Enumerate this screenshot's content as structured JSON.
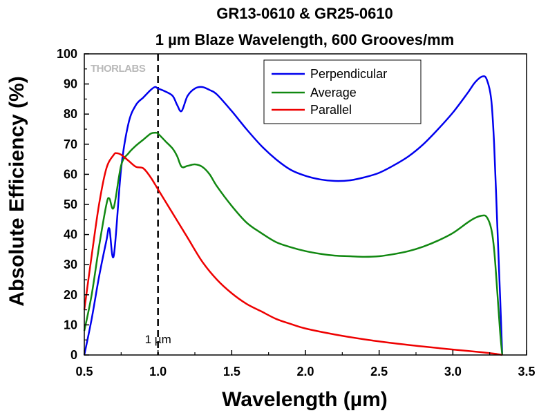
{
  "chart_data": {
    "type": "line",
    "title_line1": "GR13-0610 & GR25-0610",
    "title_line2": "1 µm Blaze Wavelength, 600 Grooves/mm",
    "xlabel": "Wavelength (µm)",
    "ylabel": "Absolute Efficiency (%)",
    "xlim": [
      0.5,
      3.5
    ],
    "ylim": [
      0,
      100
    ],
    "xticks": [
      0.5,
      1.0,
      1.5,
      2.0,
      2.5,
      3.0,
      3.5
    ],
    "xtick_labels": [
      "0.5",
      "1.0",
      "1.5",
      "2.0",
      "2.5",
      "3.0",
      "3.5"
    ],
    "yticks": [
      0,
      10,
      20,
      30,
      40,
      50,
      60,
      70,
      80,
      90,
      100
    ],
    "ytick_labels": [
      "0",
      "10",
      "20",
      "30",
      "40",
      "50",
      "60",
      "70",
      "80",
      "90",
      "100"
    ],
    "grid": false,
    "legend_position": "top-center",
    "watermark": "THORLABS",
    "annotations": [
      {
        "type": "vline",
        "x": 1.0,
        "style": "dashed",
        "label": "1 µm"
      }
    ],
    "series": [
      {
        "name": "Perpendicular",
        "color": "#0000ee",
        "x": [
          0.5,
          0.55,
          0.6,
          0.65,
          0.67,
          0.7,
          0.75,
          0.8,
          0.85,
          0.9,
          0.95,
          0.98,
          1.0,
          1.05,
          1.1,
          1.13,
          1.16,
          1.2,
          1.25,
          1.3,
          1.35,
          1.4,
          1.5,
          1.6,
          1.7,
          1.8,
          1.9,
          2.0,
          2.1,
          2.2,
          2.3,
          2.4,
          2.5,
          2.6,
          2.7,
          2.8,
          2.9,
          3.0,
          3.1,
          3.15,
          3.2,
          3.23,
          3.26,
          3.28,
          3.3,
          3.32,
          3.335
        ],
        "y": [
          0,
          12,
          26,
          38,
          42,
          33,
          62,
          77,
          83,
          85.5,
          88,
          89,
          88.5,
          87.5,
          86,
          83,
          81,
          86,
          88.5,
          89,
          88,
          86.5,
          81,
          75,
          69.5,
          65,
          61.5,
          59.5,
          58.3,
          57.8,
          58,
          59,
          60.5,
          63,
          66,
          70,
          75,
          80.5,
          87,
          90.5,
          92.5,
          91.5,
          85,
          70,
          45,
          20,
          0
        ]
      },
      {
        "name": "Average",
        "color": "#118811",
        "x": [
          0.5,
          0.55,
          0.6,
          0.65,
          0.67,
          0.7,
          0.75,
          0.8,
          0.85,
          0.9,
          0.95,
          0.98,
          1.0,
          1.05,
          1.1,
          1.13,
          1.16,
          1.2,
          1.25,
          1.3,
          1.35,
          1.4,
          1.5,
          1.6,
          1.7,
          1.8,
          1.9,
          2.0,
          2.1,
          2.2,
          2.3,
          2.4,
          2.5,
          2.6,
          2.7,
          2.8,
          2.9,
          3.0,
          3.1,
          3.15,
          3.2,
          3.23,
          3.26,
          3.28,
          3.3,
          3.32,
          3.335
        ],
        "y": [
          8,
          20,
          36,
          50,
          52,
          49,
          63,
          67,
          69.5,
          71.5,
          73.5,
          73.8,
          73.5,
          71,
          68.5,
          66,
          62.5,
          62.8,
          63.3,
          62.5,
          60,
          56,
          49.5,
          44,
          40.5,
          37.5,
          35.8,
          34.5,
          33.6,
          33,
          32.8,
          32.6,
          32.8,
          33.5,
          34.5,
          36,
          38,
          40.5,
          44,
          45.5,
          46.3,
          45.8,
          42,
          35,
          22,
          8,
          0
        ]
      },
      {
        "name": "Parallel",
        "color": "#ee0000",
        "x": [
          0.5,
          0.55,
          0.6,
          0.65,
          0.7,
          0.72,
          0.75,
          0.8,
          0.85,
          0.9,
          0.95,
          1.0,
          1.05,
          1.1,
          1.2,
          1.3,
          1.4,
          1.5,
          1.6,
          1.7,
          1.8,
          1.9,
          2.0,
          2.2,
          2.4,
          2.6,
          2.8,
          3.0,
          3.2,
          3.3,
          3.335
        ],
        "y": [
          15,
          33,
          50,
          62,
          66.5,
          67,
          66.5,
          64.5,
          62.5,
          62,
          59,
          55,
          51,
          47,
          39,
          31,
          25,
          20.5,
          17,
          14.5,
          12,
          10.3,
          8.8,
          6.8,
          5.2,
          3.9,
          2.8,
          1.8,
          0.9,
          0.3,
          0
        ]
      }
    ]
  }
}
